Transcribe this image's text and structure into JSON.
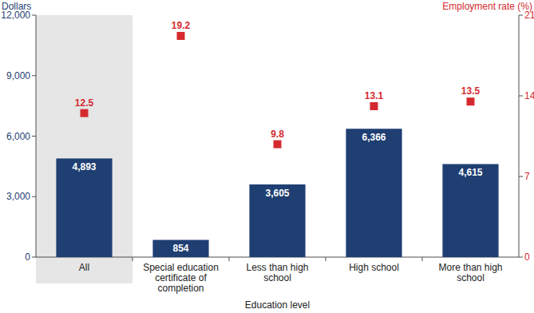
{
  "chart_data": {
    "type": "bar",
    "y_label": "Dollars",
    "y2_label": "Employment rate (%)",
    "x_label": "Education level",
    "categories": [
      "All",
      "Special education certificate of completion",
      "Less than high school",
      "High school",
      "More than high school"
    ],
    "series": [
      {
        "type": "bar",
        "color": "#1f3f73",
        "values": [
          4893,
          854,
          3605,
          6366,
          4615
        ],
        "value_labels": [
          "4,893",
          "854",
          "3,605",
          "6,366",
          "4,615"
        ]
      },
      {
        "type": "scatter",
        "marker": "square",
        "color": "#d42a2f",
        "axis": "y2",
        "values": [
          12.5,
          19.2,
          9.8,
          13.1,
          13.5
        ]
      }
    ],
    "ylim": [
      0,
      12000
    ],
    "yticks": [
      0,
      {
        "value": 3000,
        "label": "3,000"
      },
      {
        "value": 6000,
        "label": "6,000"
      },
      {
        "value": 9000,
        "label": "9,000"
      },
      {
        "value": 12000,
        "label": "12,000"
      }
    ],
    "y2lim": [
      0,
      21
    ],
    "y2ticks": [
      0,
      7,
      14,
      21
    ],
    "data_labels": true,
    "grid": false
  }
}
